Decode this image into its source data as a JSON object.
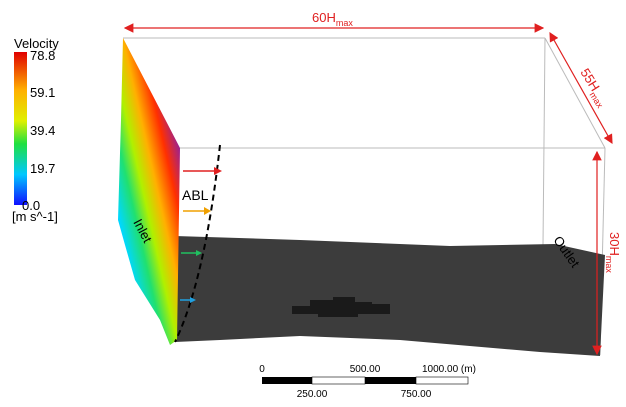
{
  "legend": {
    "title": "Velocity",
    "ticks": [
      "78.8",
      "59.1",
      "39.4",
      "19.7",
      "0.0"
    ],
    "unit": "[m s^-1]"
  },
  "dimensions": {
    "length": {
      "main": "60H",
      "sub": "max"
    },
    "width": {
      "main": "55H",
      "sub": "max"
    },
    "height": {
      "main": "30H",
      "sub": "max"
    }
  },
  "labels": {
    "inlet": "Inlet",
    "outlet": "Outlet",
    "abl": "ABL"
  },
  "scale_bar": {
    "top": [
      "0",
      "500.00",
      "1000.00 (m)"
    ],
    "bottom": [
      "250.00",
      "750.00"
    ]
  }
}
